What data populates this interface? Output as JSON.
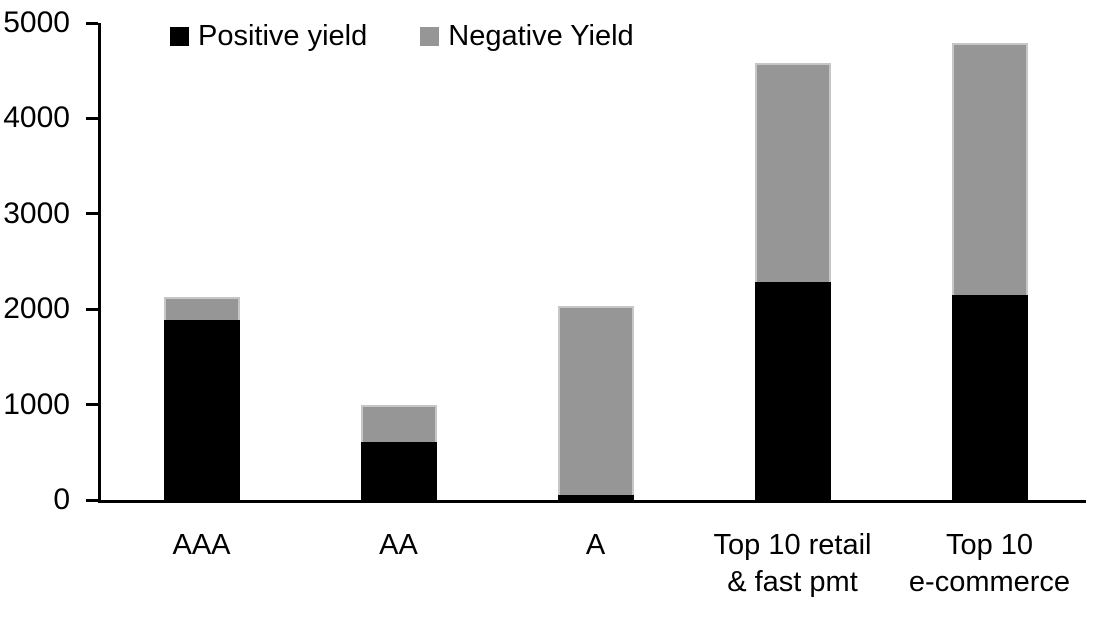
{
  "chart_data": {
    "type": "bar",
    "stacked": true,
    "title": "",
    "xlabel": "",
    "ylabel": "",
    "categories": [
      "AAA",
      "AA",
      "A",
      "Top 10 retail\n& fast pmt",
      "Top 10\ne-commerce"
    ],
    "series": [
      {
        "name": "Positive yield",
        "color": "#000000",
        "values": [
          1890,
          610,
          50,
          2280,
          2150
        ]
      },
      {
        "name": "Negative Yield",
        "color": "#969696",
        "values": [
          240,
          390,
          1980,
          2300,
          2640
        ]
      }
    ],
    "totals": [
      2130,
      1000,
      2030,
      4580,
      4790
    ],
    "ylim": [
      0,
      5000
    ],
    "yticks": [
      0,
      1000,
      2000,
      3000,
      4000,
      5000
    ],
    "yticklabels": [
      "0",
      "1000",
      "2000",
      "3000",
      "4000",
      "5000"
    ],
    "grid": false,
    "legend_position": "top-left",
    "colors": {
      "positive": "#000000",
      "negative": "#969696",
      "negative_border": "#c6c6c6",
      "axis": "#000000",
      "background": "#ffffff"
    }
  }
}
